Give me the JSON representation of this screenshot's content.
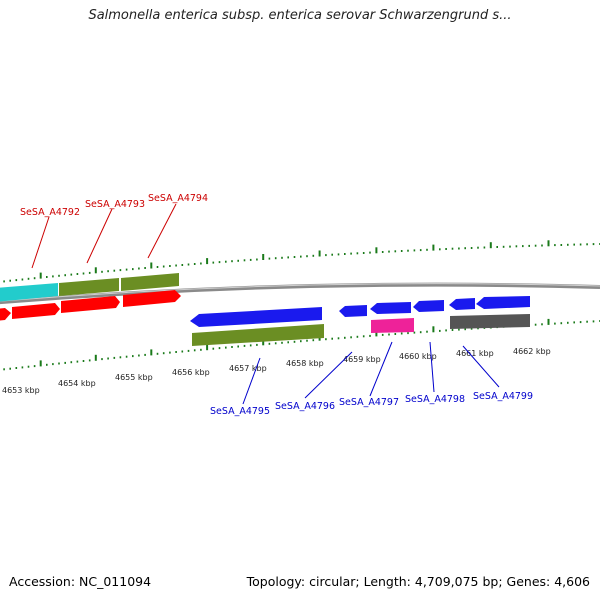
{
  "title": "Salmonella enterica subsp. enterica serovar Schwarzengrund s...",
  "footer": {
    "accession": "Accession: NC_011094",
    "topology": "Topology: circular; Length: 4,709,075 bp; Genes: 4,606"
  },
  "colors": {
    "forward_label": "#cc0000",
    "reverse_label": "#0000cc",
    "backbone": "#888888",
    "tick": "#1a7a1a",
    "red": "#ff0000",
    "olive": "#6b8e23",
    "cyan": "#22cccc",
    "blue": "#1a1aee",
    "magenta": "#ee2299",
    "gray": "#555555"
  },
  "axis": {
    "kbp_labels": [
      "4653 kbp",
      "4654 kbp",
      "4655 kbp",
      "4656 kbp",
      "4657 kbp",
      "4658 kbp",
      "4659 kbp",
      "4660 kbp",
      "4661 kbp",
      "4662 kbp"
    ]
  },
  "genes_forward": [
    {
      "label": "SeSA_A4792"
    },
    {
      "label": "SeSA_A4793"
    },
    {
      "label": "SeSA_A4794"
    }
  ],
  "genes_reverse": [
    {
      "label": "SeSA_A4795"
    },
    {
      "label": "SeSA_A4796"
    },
    {
      "label": "SeSA_A4797"
    },
    {
      "label": "SeSA_A4798"
    },
    {
      "label": "SeSA_A4799"
    }
  ]
}
